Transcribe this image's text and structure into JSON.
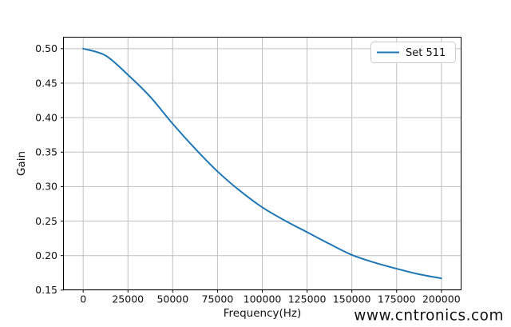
{
  "figure": {
    "background": "#ffffff",
    "watermark": {
      "text": "www.cntronics.com",
      "color": "#b5e2b5"
    }
  },
  "chart_data": {
    "type": "line",
    "title": "",
    "xlabel": "Frequency(Hz)",
    "ylabel": "Gain",
    "xlim": [
      -11000,
      211000
    ],
    "ylim": [
      0.1504,
      0.5166
    ],
    "grid": true,
    "x_ticks": [
      0,
      25000,
      50000,
      75000,
      100000,
      125000,
      150000,
      175000,
      200000
    ],
    "x_tick_labels": [
      "0",
      "25000",
      "50000",
      "75000",
      "100000",
      "125000",
      "150000",
      "175000",
      "200000"
    ],
    "y_ticks": [
      0.15,
      0.2,
      0.25,
      0.3,
      0.35,
      0.4,
      0.45,
      0.5
    ],
    "y_tick_labels": [
      "0.15",
      "0.20",
      "0.25",
      "0.30",
      "0.35",
      "0.40",
      "0.45",
      "0.50"
    ],
    "legend": {
      "position": "upper right",
      "entries": [
        {
          "label": "Set 511",
          "color": "#1f77b4"
        }
      ]
    },
    "series": [
      {
        "name": "Set 511",
        "color": "#1f77b4",
        "x": [
          0,
          12500,
          25000,
          37500,
          50000,
          62500,
          75000,
          87500,
          100000,
          112500,
          125000,
          137500,
          150000,
          162500,
          175000,
          187500,
          200000
        ],
        "y": [
          0.5,
          0.49,
          0.462,
          0.43,
          0.391,
          0.355,
          0.322,
          0.294,
          0.27,
          0.251,
          0.234,
          0.217,
          0.201,
          0.19,
          0.181,
          0.173,
          0.167
        ]
      }
    ],
    "colors": {
      "grid": "#c0c0c0",
      "spine": "#000000",
      "tick": "#000000",
      "tick_label": "#111111"
    }
  }
}
